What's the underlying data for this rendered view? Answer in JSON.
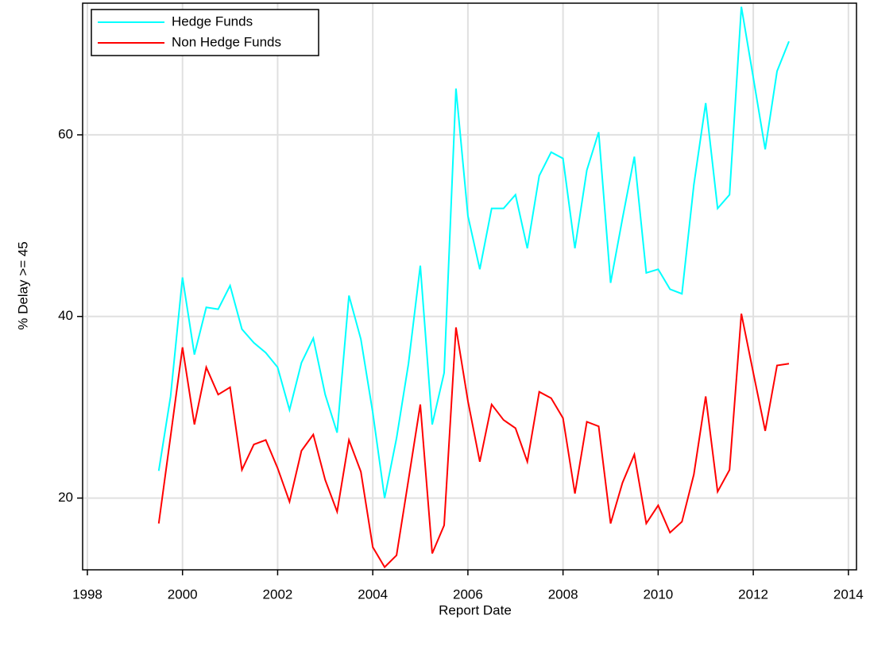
{
  "chart_data": {
    "type": "line",
    "x_label": "Report Date",
    "y_label": "% Delay >= 45",
    "x": [
      1999.5,
      1999.75,
      2000,
      2000.25,
      2000.5,
      2000.75,
      2001,
      2001.25,
      2001.5,
      2001.75,
      2002,
      2002.25,
      2002.5,
      2002.75,
      2003,
      2003.25,
      2003.5,
      2003.75,
      2004,
      2004.25,
      2004.5,
      2004.75,
      2005,
      2005.25,
      2005.5,
      2005.75,
      2006,
      2006.25,
      2006.5,
      2006.75,
      2007,
      2007.25,
      2007.5,
      2007.75,
      2008,
      2008.25,
      2008.5,
      2008.75,
      2009,
      2009.25,
      2009.5,
      2009.75,
      2010,
      2010.25,
      2010.5,
      2010.75,
      2011,
      2011.25,
      2011.5,
      2011.75,
      2012,
      2012.25,
      2012.5,
      2012.75
    ],
    "series": [
      {
        "name": "Hedge Funds",
        "color": "#00ffff",
        "values": [
          23,
          31.2,
          44.3,
          35.8,
          41,
          40.8,
          43.4,
          38.6,
          37.1,
          36,
          34.4,
          29.7,
          34.9,
          37.6,
          31.4,
          27.2,
          42.3,
          37.5,
          29.4,
          20,
          26.6,
          34.8,
          45.6,
          28.1,
          33.8,
          65.1,
          51.1,
          45.2,
          51.9,
          51.9,
          53.4,
          47.5,
          55.5,
          58.1,
          57.4,
          47.5,
          56.1,
          60.3,
          43.7,
          50.8,
          57.6,
          44.8,
          45.2,
          43,
          42.5,
          54.5,
          63.5,
          51.9,
          53.4,
          74.1,
          66.3,
          58.4,
          67,
          70.3
        ]
      },
      {
        "name": "Non Hedge Funds",
        "color": "#ff0000",
        "values": [
          17.2,
          26.8,
          36.6,
          28.1,
          34.4,
          31.4,
          32.2,
          23.1,
          25.9,
          26.4,
          23.3,
          19.6,
          25.2,
          27,
          22,
          18.5,
          26.4,
          22.9,
          14.6,
          12.4,
          13.7,
          22,
          30.3,
          13.9,
          17,
          38.8,
          30.7,
          24,
          30.3,
          28.6,
          27.7,
          24,
          31.7,
          31,
          28.8,
          20.5,
          28.4,
          27.9,
          17.2,
          21.7,
          24.8,
          17.2,
          19.2,
          16.2,
          17.4,
          22.6,
          31.2,
          20.7,
          23.1,
          40.3,
          33.8,
          27.4,
          34.6,
          34.8
        ]
      }
    ],
    "xlim": [
      1997.9,
      2014.17
    ],
    "ylim": [
      12.1,
      74.5
    ],
    "xticks": [
      1998,
      2000,
      2002,
      2004,
      2006,
      2008,
      2010,
      2012,
      2014
    ],
    "yticks": [
      20,
      40,
      60
    ],
    "grid": true,
    "legend": "upper left"
  }
}
